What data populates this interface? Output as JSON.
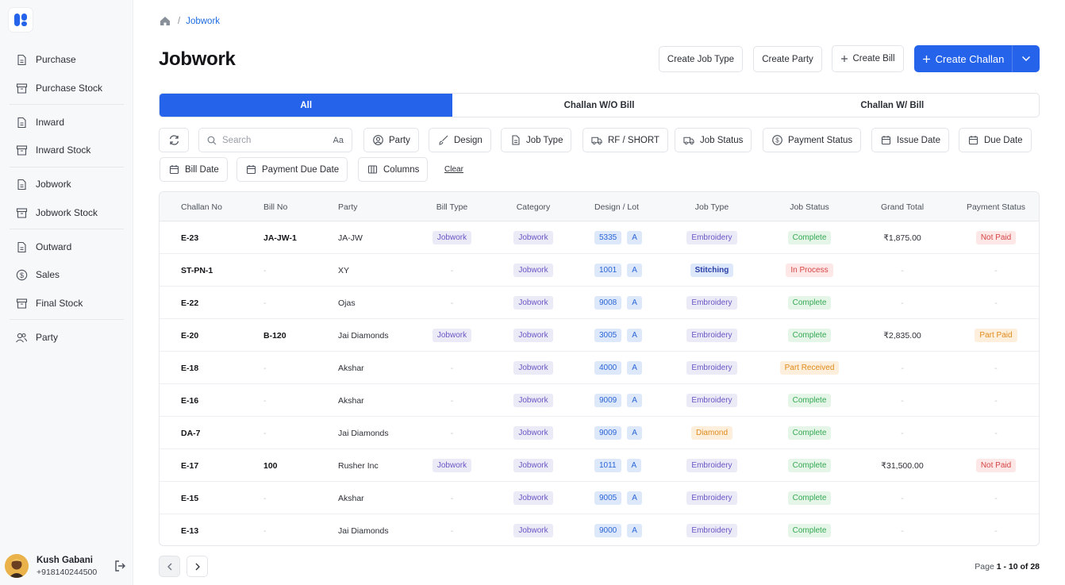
{
  "sidebar": {
    "items": [
      {
        "label": "Purchase",
        "icon": "file-icon"
      },
      {
        "label": "Purchase Stock",
        "icon": "archive-icon"
      },
      {
        "label": "Inward",
        "icon": "file-icon"
      },
      {
        "label": "Inward Stock",
        "icon": "archive-icon"
      },
      {
        "label": "Jobwork",
        "icon": "file-icon"
      },
      {
        "label": "Jobwork Stock",
        "icon": "archive-icon"
      },
      {
        "label": "Outward",
        "icon": "file-icon"
      },
      {
        "label": "Sales",
        "icon": "dollar-circle-icon"
      },
      {
        "label": "Final Stock",
        "icon": "archive-icon"
      },
      {
        "label": "Party",
        "icon": "users-icon"
      }
    ],
    "user": {
      "name": "Kush Gabani",
      "phone": "+918140244500"
    }
  },
  "breadcrumb": {
    "current": "Jobwork"
  },
  "page_title": "Jobwork",
  "actions": {
    "create_job_type": "Create Job Type",
    "create_party": "Create Party",
    "create_bill": "Create Bill",
    "create_challan": "Create Challan"
  },
  "tabs": [
    "All",
    "Challan W/O Bill",
    "Challan W/ Bill"
  ],
  "filters": {
    "search_placeholder": "Search",
    "search_case": "Aa",
    "party": "Party",
    "design": "Design",
    "job_type": "Job Type",
    "rf_short": "RF / SHORT",
    "job_status": "Job Status",
    "payment_status": "Payment Status",
    "issue_date": "Issue Date",
    "due_date": "Due Date",
    "bill_date": "Bill Date",
    "payment_due_date": "Payment Due Date",
    "columns": "Columns",
    "clear": "Clear"
  },
  "table": {
    "columns": [
      "Challan No",
      "Bill No",
      "Party",
      "Bill Type",
      "Category",
      "Design / Lot",
      "Job Type",
      "Job Status",
      "Grand Total",
      "Payment Status"
    ],
    "rows": [
      {
        "challan": "E-23",
        "bill": "JA-JW-1",
        "party": "JA-JW",
        "bill_type": "Jobwork",
        "category": "Jobwork",
        "design": "5335",
        "lot": "A",
        "job_type": "Embroidery",
        "job_status": "Complete",
        "grand_total": "₹1,875.00",
        "payment_status": "Not Paid"
      },
      {
        "challan": "ST-PN-1",
        "bill": "-",
        "party": "XY",
        "bill_type": "-",
        "category": "Jobwork",
        "design": "1001",
        "lot": "A",
        "job_type": "Stitching",
        "job_status": "In Process",
        "grand_total": "-",
        "payment_status": "-"
      },
      {
        "challan": "E-22",
        "bill": "-",
        "party": "Ojas",
        "bill_type": "-",
        "category": "Jobwork",
        "design": "9008",
        "lot": "A",
        "job_type": "Embroidery",
        "job_status": "Complete",
        "grand_total": "-",
        "payment_status": "-"
      },
      {
        "challan": "E-20",
        "bill": "B-120",
        "party": "Jai Diamonds",
        "bill_type": "Jobwork",
        "category": "Jobwork",
        "design": "3005",
        "lot": "A",
        "job_type": "Embroidery",
        "job_status": "Complete",
        "grand_total": "₹2,835.00",
        "payment_status": "Part Paid"
      },
      {
        "challan": "E-18",
        "bill": "-",
        "party": "Akshar",
        "bill_type": "-",
        "category": "Jobwork",
        "design": "4000",
        "lot": "A",
        "job_type": "Embroidery",
        "job_status": "Part Received",
        "grand_total": "-",
        "payment_status": "-"
      },
      {
        "challan": "E-16",
        "bill": "-",
        "party": "Akshar",
        "bill_type": "-",
        "category": "Jobwork",
        "design": "9009",
        "lot": "A",
        "job_type": "Embroidery",
        "job_status": "Complete",
        "grand_total": "-",
        "payment_status": "-"
      },
      {
        "challan": "DA-7",
        "bill": "-",
        "party": "Jai Diamonds",
        "bill_type": "-",
        "category": "Jobwork",
        "design": "9009",
        "lot": "A",
        "job_type": "Diamond",
        "job_status": "Complete",
        "grand_total": "-",
        "payment_status": "-"
      },
      {
        "challan": "E-17",
        "bill": "100",
        "party": "Rusher Inc",
        "bill_type": "Jobwork",
        "category": "Jobwork",
        "design": "1011",
        "lot": "A",
        "job_type": "Embroidery",
        "job_status": "Complete",
        "grand_total": "₹31,500.00",
        "payment_status": "Not Paid"
      },
      {
        "challan": "E-15",
        "bill": "-",
        "party": "Akshar",
        "bill_type": "-",
        "category": "Jobwork",
        "design": "9005",
        "lot": "A",
        "job_type": "Embroidery",
        "job_status": "Complete",
        "grand_total": "-",
        "payment_status": "-"
      },
      {
        "challan": "E-13",
        "bill": "-",
        "party": "Jai Diamonds",
        "bill_type": "-",
        "category": "Jobwork",
        "design": "9000",
        "lot": "A",
        "job_type": "Embroidery",
        "job_status": "Complete",
        "grand_total": "-",
        "payment_status": "-"
      }
    ]
  },
  "pagination": {
    "prefix": "Page",
    "range": "1 - 10 of 28"
  },
  "colors": {
    "primary": "#2563eb",
    "complete": "#34a853",
    "in_process": "#d64545",
    "part_received": "#e08a1a",
    "not_paid": "#d64545",
    "part_paid": "#e08a1a"
  }
}
